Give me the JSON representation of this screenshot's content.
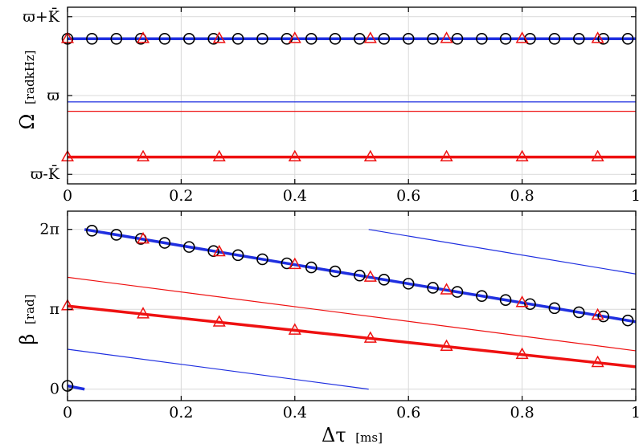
{
  "chart_data": [
    {
      "type": "line",
      "panel": "top",
      "ylabel": "Ω",
      "ylabel_unit": "[radkHz]",
      "xlim": [
        0,
        1
      ],
      "ylim": [
        -1.12,
        1.12
      ],
      "grid": true,
      "x_ticks": [
        0,
        0.2,
        0.4,
        0.6,
        0.8,
        1
      ],
      "x_tick_labels": [
        "0",
        "0.2",
        "0.4",
        "0.6",
        "0.8",
        "1"
      ],
      "y_ticks": [
        -1,
        0,
        1
      ],
      "y_tick_labels": [
        "ϖ-K̄",
        "ϖ",
        "ϖ+K̄"
      ],
      "series": [
        {
          "color": "#1f2fe0",
          "width": 3.5,
          "points": [
            [
              0,
              0.72
            ],
            [
              1,
              0.72
            ]
          ]
        },
        {
          "color": "#1f2fe0",
          "width": 1.2,
          "points": [
            [
              0,
              -0.08
            ],
            [
              1,
              -0.08
            ]
          ]
        },
        {
          "color": "#ee1111",
          "width": 1.2,
          "points": [
            [
              0,
              -0.2
            ],
            [
              1,
              -0.2
            ]
          ]
        },
        {
          "color": "#ee1111",
          "width": 3.5,
          "points": [
            [
              0,
              -0.78
            ],
            [
              1,
              -0.78
            ]
          ]
        }
      ],
      "markers": [
        {
          "symbol": "circle",
          "color": "#000000",
          "y": 0.72,
          "x": [
            0,
            0.043,
            0.086,
            0.129,
            0.171,
            0.214,
            0.257,
            0.3,
            0.343,
            0.386,
            0.429,
            0.471,
            0.514,
            0.557,
            0.6,
            0.643,
            0.686,
            0.729,
            0.771,
            0.814,
            0.857,
            0.9,
            0.943,
            0.986
          ]
        },
        {
          "symbol": "triangle",
          "color": "#ee1111",
          "y": 0.72,
          "x": [
            0,
            0.133,
            0.267,
            0.4,
            0.533,
            0.667,
            0.8,
            0.933
          ]
        },
        {
          "symbol": "triangle",
          "color": "#ee1111",
          "y": -0.78,
          "x": [
            0,
            0.133,
            0.267,
            0.4,
            0.533,
            0.667,
            0.8,
            0.933
          ]
        }
      ]
    },
    {
      "type": "line",
      "panel": "bottom",
      "xlabel": "Δτ",
      "xlabel_unit": "[ms]",
      "ylabel": "β",
      "ylabel_unit": "[rad]",
      "xlim": [
        0,
        1
      ],
      "ylim": [
        -0.45,
        7.0
      ],
      "grid": true,
      "x_ticks": [
        0,
        0.2,
        0.4,
        0.6,
        0.8,
        1
      ],
      "x_tick_labels": [
        "0",
        "0.2",
        "0.4",
        "0.6",
        "0.8",
        "1"
      ],
      "y_ticks": [
        0,
        3.1416,
        6.2832
      ],
      "y_tick_labels": [
        "0",
        "π",
        "2π"
      ],
      "series": [
        {
          "color": "#1f2fe0",
          "width": 3.5,
          "points": [
            [
              0.03,
              6.28
            ],
            [
              1,
              2.65
            ]
          ]
        },
        {
          "color": "#1f2fe0",
          "width": 3.5,
          "points": [
            [
              0,
              0.13
            ],
            [
              0.03,
              0.0
            ]
          ]
        },
        {
          "color": "#1f2fe0",
          "width": 1.2,
          "points": [
            [
              0.53,
              6.28
            ],
            [
              1,
              4.53
            ]
          ]
        },
        {
          "color": "#1f2fe0",
          "width": 1.2,
          "points": [
            [
              0,
              1.57
            ],
            [
              0.53,
              0.0
            ]
          ]
        },
        {
          "color": "#ee1111",
          "width": 3.5,
          "points": [
            [
              0,
              3.27
            ],
            [
              1,
              0.88
            ]
          ]
        },
        {
          "color": "#ee1111",
          "width": 1.2,
          "points": [
            [
              0,
              4.4
            ],
            [
              1,
              1.51
            ]
          ]
        }
      ],
      "markers": [
        {
          "symbol": "circle",
          "color": "#000000",
          "line_start": [
            0.03,
            6.28
          ],
          "line_end": [
            1,
            2.65
          ],
          "x": [
            0.043,
            0.086,
            0.129,
            0.171,
            0.214,
            0.257,
            0.3,
            0.343,
            0.386,
            0.429,
            0.471,
            0.514,
            0.557,
            0.6,
            0.643,
            0.686,
            0.729,
            0.771,
            0.814,
            0.857,
            0.9,
            0.943,
            0.986
          ]
        },
        {
          "symbol": "circle",
          "color": "#000000",
          "points": [
            [
              0,
              0.13
            ]
          ]
        },
        {
          "symbol": "triangle",
          "color": "#ee1111",
          "line_start": [
            0.03,
            6.28
          ],
          "line_end": [
            1,
            2.65
          ],
          "x": [
            0.133,
            0.267,
            0.4,
            0.533,
            0.667,
            0.8,
            0.933
          ]
        },
        {
          "symbol": "triangle",
          "color": "#ee1111",
          "line_start": [
            0,
            3.27
          ],
          "line_end": [
            1,
            0.88
          ],
          "x": [
            0,
            0.133,
            0.267,
            0.4,
            0.533,
            0.667,
            0.8,
            0.933
          ]
        }
      ]
    }
  ]
}
